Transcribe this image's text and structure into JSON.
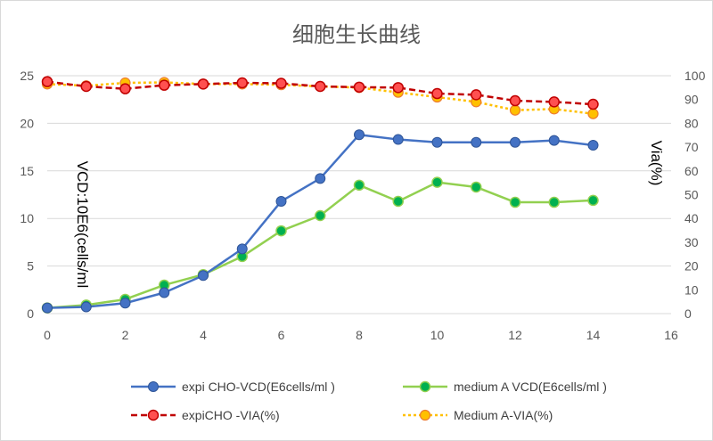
{
  "chart_data": {
    "type": "line",
    "title": "细胞生长曲线",
    "xlabel": "",
    "ylabel": "VCD:10E6(cells/ml",
    "y2label": "Via(%)",
    "xlim": [
      0,
      16
    ],
    "ylim": [
      0,
      25
    ],
    "y2lim": [
      0,
      100
    ],
    "xticks": [
      0,
      2,
      4,
      6,
      8,
      10,
      12,
      14,
      16
    ],
    "yticks": [
      0,
      5,
      10,
      15,
      20,
      25
    ],
    "y2ticks": [
      0,
      10,
      20,
      30,
      40,
      50,
      60,
      70,
      80,
      90,
      100
    ],
    "grid": true,
    "legend_position": "bottom",
    "series": [
      {
        "name": "expi CHO-VCD(E6cells/ml )",
        "axis": "left",
        "color": "#4472C4",
        "style": "solid-circle",
        "x": [
          0,
          1,
          2,
          3,
          4,
          5,
          6,
          7,
          8,
          9,
          10,
          11,
          12,
          13,
          14
        ],
        "values": [
          0.6,
          0.7,
          1.1,
          2.2,
          4.0,
          6.8,
          11.8,
          14.2,
          18.8,
          18.3,
          18.0,
          18.0,
          18.0,
          18.2,
          17.7
        ]
      },
      {
        "name": "medium A VCD(E6cells/ml )",
        "axis": "left",
        "color": "#92D050",
        "style": "solid-green-dot",
        "x": [
          0,
          1,
          2,
          3,
          4,
          5,
          6,
          7,
          8,
          9,
          10,
          11,
          12,
          13,
          14
        ],
        "values": [
          0.6,
          0.9,
          1.5,
          3.0,
          4.1,
          6.0,
          8.7,
          10.3,
          13.5,
          11.8,
          13.8,
          13.3,
          11.7,
          11.7,
          11.9
        ]
      },
      {
        "name": "expiCHO -VIA(%)",
        "axis": "right",
        "color": "#C00000",
        "style": "dashed-red-dot",
        "x": [
          0,
          1,
          2,
          3,
          4,
          5,
          6,
          7,
          8,
          9,
          10,
          11,
          12,
          13,
          14
        ],
        "values": [
          97.5,
          95.5,
          94.5,
          96.0,
          96.5,
          97.0,
          96.8,
          95.5,
          95.2,
          95.0,
          92.5,
          92.0,
          89.5,
          89.0,
          88.0
        ]
      },
      {
        "name": "Medium A-VIA(%)",
        "axis": "right",
        "color": "#FFC000",
        "style": "dotted-orange-dot",
        "x": [
          0,
          1,
          2,
          3,
          4,
          5,
          6,
          7,
          8,
          9,
          10,
          11,
          12,
          13,
          14
        ],
        "values": [
          96.5,
          95.8,
          97.0,
          97.2,
          96.5,
          96.5,
          96.2,
          95.5,
          95.0,
          93.0,
          91.0,
          89.0,
          85.5,
          86.0,
          84.0
        ]
      }
    ]
  }
}
